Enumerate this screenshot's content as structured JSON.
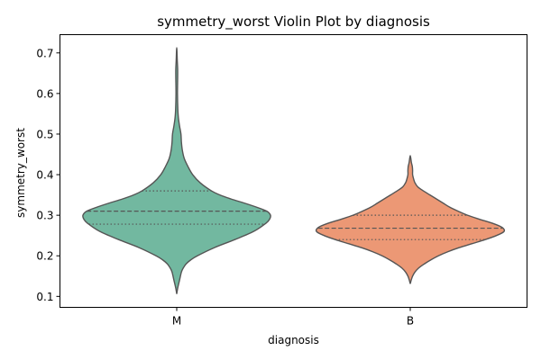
{
  "chart_data": {
    "type": "violin",
    "title": "symmetry_worst Violin Plot by diagnosis",
    "xlabel": "diagnosis",
    "ylabel": "symmetry_worst",
    "categories": [
      "M",
      "B"
    ],
    "ylim": [
      0.073,
      0.745
    ],
    "yticks": [
      "0.1",
      "0.2",
      "0.3",
      "0.4",
      "0.5",
      "0.6",
      "0.7"
    ],
    "grid": false,
    "colors": [
      "#72b8a0",
      "#ec9875"
    ],
    "edge_color": "#555555",
    "violins": [
      {
        "category": "M",
        "quartiles": {
          "q1": 0.278,
          "median": 0.31,
          "q3": 0.36
        },
        "profile": [
          [
            0.106,
            0.0
          ],
          [
            0.12,
            0.01
          ],
          [
            0.14,
            0.03
          ],
          [
            0.16,
            0.05
          ],
          [
            0.17,
            0.07
          ],
          [
            0.18,
            0.1
          ],
          [
            0.19,
            0.15
          ],
          [
            0.2,
            0.22
          ],
          [
            0.22,
            0.4
          ],
          [
            0.24,
            0.62
          ],
          [
            0.26,
            0.82
          ],
          [
            0.28,
            0.95
          ],
          [
            0.29,
            0.99
          ],
          [
            0.3,
            1.0
          ],
          [
            0.31,
            0.96
          ],
          [
            0.32,
            0.85
          ],
          [
            0.33,
            0.72
          ],
          [
            0.34,
            0.58
          ],
          [
            0.35,
            0.46
          ],
          [
            0.36,
            0.37
          ],
          [
            0.38,
            0.25
          ],
          [
            0.4,
            0.17
          ],
          [
            0.42,
            0.12
          ],
          [
            0.44,
            0.08
          ],
          [
            0.46,
            0.06
          ],
          [
            0.48,
            0.05
          ],
          [
            0.5,
            0.045
          ],
          [
            0.52,
            0.03
          ],
          [
            0.54,
            0.018
          ],
          [
            0.56,
            0.012
          ],
          [
            0.6,
            0.008
          ],
          [
            0.64,
            0.01
          ],
          [
            0.66,
            0.01
          ],
          [
            0.68,
            0.006
          ],
          [
            0.713,
            0.0
          ]
        ]
      },
      {
        "category": "B",
        "quartiles": {
          "q1": 0.24,
          "median": 0.268,
          "q3": 0.3
        },
        "profile": [
          [
            0.131,
            0.0
          ],
          [
            0.14,
            0.01
          ],
          [
            0.15,
            0.025
          ],
          [
            0.16,
            0.05
          ],
          [
            0.17,
            0.09
          ],
          [
            0.18,
            0.15
          ],
          [
            0.19,
            0.22
          ],
          [
            0.2,
            0.3
          ],
          [
            0.21,
            0.4
          ],
          [
            0.22,
            0.52
          ],
          [
            0.23,
            0.66
          ],
          [
            0.24,
            0.8
          ],
          [
            0.25,
            0.92
          ],
          [
            0.26,
            1.0
          ],
          [
            0.27,
            0.98
          ],
          [
            0.28,
            0.88
          ],
          [
            0.29,
            0.74
          ],
          [
            0.3,
            0.61
          ],
          [
            0.31,
            0.51
          ],
          [
            0.32,
            0.42
          ],
          [
            0.33,
            0.35
          ],
          [
            0.34,
            0.28
          ],
          [
            0.35,
            0.21
          ],
          [
            0.36,
            0.14
          ],
          [
            0.37,
            0.08
          ],
          [
            0.38,
            0.05
          ],
          [
            0.39,
            0.035
          ],
          [
            0.4,
            0.025
          ],
          [
            0.41,
            0.025
          ],
          [
            0.42,
            0.022
          ],
          [
            0.43,
            0.012
          ],
          [
            0.447,
            0.0
          ]
        ]
      }
    ]
  }
}
